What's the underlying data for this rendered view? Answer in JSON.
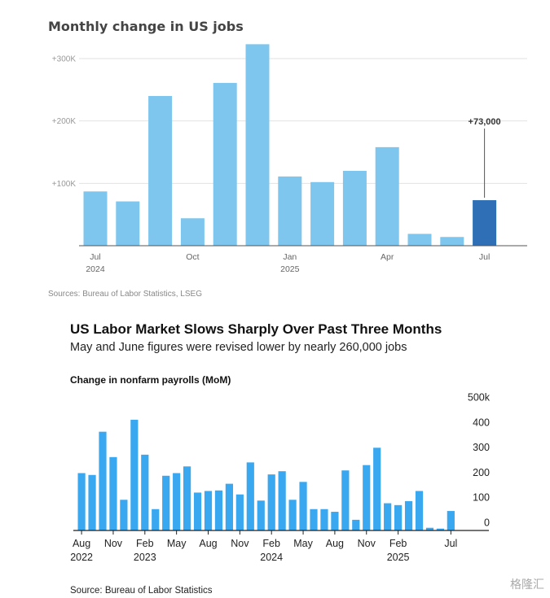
{
  "chart_data": [
    {
      "type": "bar",
      "title": "Monthly change in US jobs",
      "categories": [
        "Jul 2024",
        "Aug 2024",
        "Sep 2024",
        "Oct 2024",
        "Nov 2024",
        "Dec 2024",
        "Jan 2025",
        "Feb 2025",
        "Mar 2025",
        "Apr 2025",
        "May 2025",
        "Jun 2025",
        "Jul 2025"
      ],
      "values": [
        87000,
        71000,
        240000,
        44000,
        261000,
        323000,
        111000,
        102000,
        120000,
        158000,
        19000,
        14000,
        73000
      ],
      "highlight_index": 12,
      "annotation": "+73,000",
      "y_ticks": [
        "+100K",
        "+200K",
        "+300K"
      ],
      "y_tick_values": [
        100000,
        200000,
        300000
      ],
      "ylim": [
        0,
        330000
      ],
      "x_labels": [
        {
          "index": 0,
          "month": "Jul",
          "year": "2024"
        },
        {
          "index": 3,
          "month": "Oct",
          "year": ""
        },
        {
          "index": 6,
          "month": "Jan",
          "year": "2025"
        },
        {
          "index": 9,
          "month": "Apr",
          "year": ""
        },
        {
          "index": 12,
          "month": "Jul",
          "year": ""
        }
      ],
      "source": "Sources: Bureau of Labor Statistics, LSEG",
      "colors": {
        "bar": "#7ec6ee",
        "highlight": "#2e6fb5",
        "grid": "#e2e2e2"
      }
    },
    {
      "type": "bar",
      "title": "US Labor Market Slows Sharply Over Past Three Months",
      "subtitle": "May and June figures were revised lower by nearly 260,000 jobs",
      "ylabel": "Change in nonfarm payrolls (MoM)",
      "values_k": [
        215,
        208,
        370,
        275,
        115,
        415,
        284,
        80,
        205,
        215,
        240,
        142,
        148,
        150,
        175,
        135,
        255,
        112,
        210,
        222,
        115,
        182,
        80,
        80,
        70,
        225,
        40,
        245,
        310,
        102,
        95,
        110,
        148,
        10,
        7,
        73
      ],
      "y_ticks": [
        "500k",
        "400",
        "300",
        "200",
        "100",
        "0"
      ],
      "y_tick_values": [
        500,
        400,
        300,
        200,
        100,
        0
      ],
      "ylim": [
        0,
        500
      ],
      "x_labels": [
        {
          "index": 0,
          "month": "Aug",
          "year": "2022"
        },
        {
          "index": 3,
          "month": "Nov",
          "year": ""
        },
        {
          "index": 6,
          "month": "Feb",
          "year": "2023"
        },
        {
          "index": 9,
          "month": "May",
          "year": ""
        },
        {
          "index": 12,
          "month": "Aug",
          "year": ""
        },
        {
          "index": 15,
          "month": "Nov",
          "year": ""
        },
        {
          "index": 18,
          "month": "Feb",
          "year": "2024"
        },
        {
          "index": 21,
          "month": "May",
          "year": ""
        },
        {
          "index": 24,
          "month": "Aug",
          "year": ""
        },
        {
          "index": 27,
          "month": "Nov",
          "year": ""
        },
        {
          "index": 30,
          "month": "Feb",
          "year": "2025"
        },
        {
          "index": 35,
          "month": "Jul",
          "year": ""
        }
      ],
      "source": "Source: Bureau of Labor Statistics",
      "colors": {
        "bar": "#3aa8f0",
        "axis": "#222222"
      }
    }
  ],
  "watermark": "格隆汇"
}
